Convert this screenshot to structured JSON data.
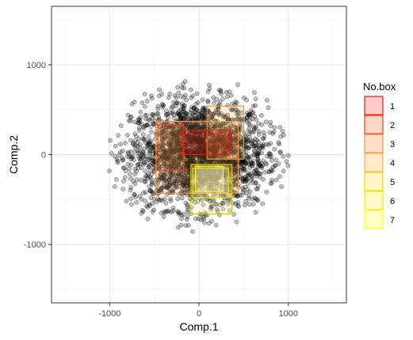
{
  "chart_data": {
    "type": "scatter",
    "xlabel": "Comp.1",
    "ylabel": "Comp.2",
    "xlim": [
      -1650,
      1650
    ],
    "ylim": [
      -1650,
      1650
    ],
    "x_ticks": [
      -1000,
      0,
      1000
    ],
    "y_ticks": [
      -1000,
      0,
      1000
    ],
    "x_tick_labels": [
      "-1000",
      "0",
      "1000"
    ],
    "y_tick_labels": [
      "-1000",
      "0",
      "1000"
    ],
    "grid": true,
    "points": {
      "description_count": 2600,
      "center": [
        0,
        0
      ],
      "spread_x": 380,
      "spread_y": 300,
      "x_range": [
        -1200,
        1200
      ],
      "y_range": [
        -920,
        900
      ],
      "color": "#000000",
      "fill_opacity": 0.25
    },
    "legend": {
      "title": "No.box",
      "placement": "right",
      "entries": [
        "1",
        "2",
        "3",
        "4",
        "5",
        "6",
        "7"
      ]
    },
    "boxes": [
      {
        "label": "1",
        "x": [
          -180,
          350
        ],
        "y": [
          0,
          270
        ],
        "fill": "#ff0000",
        "stroke": "#e31a1c",
        "fill_opacity": 0.2
      },
      {
        "label": "2",
        "x": [
          -460,
          -170
        ],
        "y": [
          -180,
          330
        ],
        "fill": "#fd8d3c",
        "stroke": "#f03b20",
        "fill_opacity": 0.2
      },
      {
        "label": "3",
        "x": [
          -480,
          440
        ],
        "y": [
          -430,
          370
        ],
        "fill": "#fdae61",
        "stroke": "#fd8d3c",
        "fill_opacity": 0.2
      },
      {
        "label": "4",
        "x": [
          90,
          500
        ],
        "y": [
          -50,
          540
        ],
        "fill": "#fec44f",
        "stroke": "#fd8d3c",
        "fill_opacity": 0.2
      },
      {
        "label": "5",
        "x": [
          -90,
          370
        ],
        "y": [
          -660,
          -110
        ],
        "fill": "#fff7a0",
        "stroke": "#d9c600",
        "fill_opacity": 0.25
      },
      {
        "label": "6",
        "x": [
          -70,
          330
        ],
        "y": [
          -480,
          -150
        ],
        "fill": "#fffacd",
        "stroke": "#e6e600",
        "fill_opacity": 0.25
      },
      {
        "label": "7",
        "x": [
          -40,
          270
        ],
        "y": [
          -410,
          -130
        ],
        "fill": "#ffffc0",
        "stroke": "#ffff00",
        "fill_opacity": 0.25
      }
    ],
    "legend_colors": [
      {
        "fill": "#ffcccc",
        "stroke": "#e31a1c"
      },
      {
        "fill": "#fdd8c8",
        "stroke": "#f03b20"
      },
      {
        "fill": "#fde0c8",
        "stroke": "#fd8d3c"
      },
      {
        "fill": "#feebc8",
        "stroke": "#fdae61"
      },
      {
        "fill": "#fff5c8",
        "stroke": "#f5d800"
      },
      {
        "fill": "#fffac8",
        "stroke": "#f0f000"
      },
      {
        "fill": "#ffffc8",
        "stroke": "#ffff00"
      }
    ]
  }
}
